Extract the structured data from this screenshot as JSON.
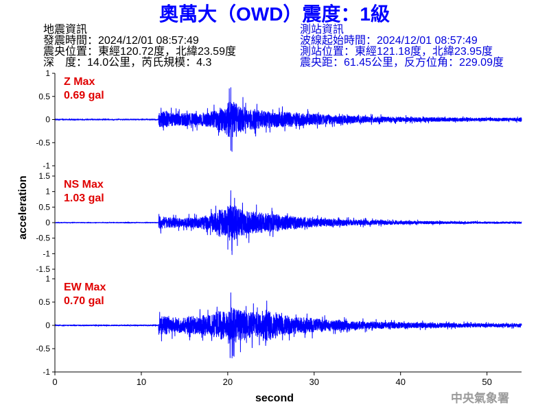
{
  "chart_data": {
    "type": "line",
    "title": "奧萬大（OWD）震度：1級",
    "xlabel": "second",
    "ylabel": "acceleration",
    "xlim": [
      0,
      54
    ],
    "xticks": [
      0,
      10,
      20,
      30,
      40,
      50
    ],
    "grid": false,
    "panels": [
      {
        "label": "Z Max",
        "max_label": "0.69 gal",
        "max_gal": 0.69,
        "ylim": [
          -1,
          1
        ],
        "yticks": [
          1,
          0.5,
          0,
          -0.5,
          -1
        ],
        "envelope": [
          [
            0,
            0.02
          ],
          [
            1,
            0.02
          ],
          [
            2,
            0.02
          ],
          [
            3,
            0.02
          ],
          [
            4,
            0.02
          ],
          [
            5,
            0.02
          ],
          [
            6,
            0.02
          ],
          [
            7,
            0.02
          ],
          [
            8,
            0.02
          ],
          [
            9,
            0.02
          ],
          [
            10,
            0.02
          ],
          [
            11,
            0.02
          ],
          [
            12,
            0.3
          ],
          [
            13,
            0.26
          ],
          [
            14,
            0.24
          ],
          [
            15,
            0.26
          ],
          [
            16,
            0.24
          ],
          [
            17,
            0.27
          ],
          [
            18,
            0.36
          ],
          [
            19,
            0.45
          ],
          [
            20,
            0.69
          ],
          [
            21,
            0.5
          ],
          [
            22,
            0.4
          ],
          [
            23,
            0.36
          ],
          [
            24,
            0.33
          ],
          [
            25,
            0.3
          ],
          [
            26,
            0.3
          ],
          [
            27,
            0.28
          ],
          [
            28,
            0.25
          ],
          [
            29,
            0.22
          ],
          [
            30,
            0.2
          ],
          [
            31,
            0.18
          ],
          [
            32,
            0.17
          ],
          [
            33,
            0.15
          ],
          [
            34,
            0.14
          ],
          [
            35,
            0.13
          ],
          [
            36,
            0.12
          ],
          [
            37,
            0.11
          ],
          [
            38,
            0.1
          ],
          [
            39,
            0.1
          ],
          [
            40,
            0.09
          ],
          [
            41,
            0.09
          ],
          [
            42,
            0.08
          ],
          [
            43,
            0.08
          ],
          [
            44,
            0.08
          ],
          [
            45,
            0.07
          ],
          [
            46,
            0.07
          ],
          [
            47,
            0.07
          ],
          [
            48,
            0.06
          ],
          [
            49,
            0.06
          ],
          [
            50,
            0.06
          ],
          [
            51,
            0.06
          ],
          [
            52,
            0.06
          ],
          [
            53,
            0.07
          ]
        ]
      },
      {
        "label": "NS Max",
        "max_label": "1.03 gal",
        "max_gal": 1.03,
        "ylim": [
          -1.5,
          1.5
        ],
        "yticks": [
          1.5,
          1,
          0.5,
          0,
          -0.5,
          -1,
          -1.5
        ],
        "envelope": [
          [
            0,
            0.02
          ],
          [
            1,
            0.02
          ],
          [
            2,
            0.02
          ],
          [
            3,
            0.02
          ],
          [
            4,
            0.02
          ],
          [
            5,
            0.02
          ],
          [
            6,
            0.02
          ],
          [
            7,
            0.02
          ],
          [
            8,
            0.03
          ],
          [
            9,
            0.02
          ],
          [
            10,
            0.02
          ],
          [
            11,
            0.02
          ],
          [
            12,
            0.35
          ],
          [
            13,
            0.3
          ],
          [
            14,
            0.28
          ],
          [
            15,
            0.3
          ],
          [
            16,
            0.3
          ],
          [
            17,
            0.4
          ],
          [
            18,
            0.55
          ],
          [
            19,
            0.75
          ],
          [
            20,
            1.03
          ],
          [
            21,
            0.8
          ],
          [
            22,
            0.65
          ],
          [
            23,
            0.6
          ],
          [
            24,
            0.55
          ],
          [
            25,
            0.5
          ],
          [
            26,
            0.42
          ],
          [
            27,
            0.36
          ],
          [
            28,
            0.32
          ],
          [
            29,
            0.28
          ],
          [
            30,
            0.25
          ],
          [
            31,
            0.22
          ],
          [
            32,
            0.2
          ],
          [
            33,
            0.18
          ],
          [
            34,
            0.16
          ],
          [
            35,
            0.15
          ],
          [
            36,
            0.13
          ],
          [
            37,
            0.12
          ],
          [
            38,
            0.11
          ],
          [
            39,
            0.1
          ],
          [
            40,
            0.09
          ],
          [
            41,
            0.09
          ],
          [
            42,
            0.08
          ],
          [
            43,
            0.08
          ],
          [
            44,
            0.07
          ],
          [
            45,
            0.07
          ],
          [
            46,
            0.06
          ],
          [
            47,
            0.06
          ],
          [
            48,
            0.06
          ],
          [
            49,
            0.05
          ],
          [
            50,
            0.05
          ],
          [
            51,
            0.05
          ],
          [
            52,
            0.05
          ],
          [
            53,
            0.05
          ]
        ]
      },
      {
        "label": "EW Max",
        "max_label": "0.70 gal",
        "max_gal": 0.7,
        "ylim": [
          -1,
          1
        ],
        "yticks": [
          1,
          0.5,
          0,
          -0.5,
          -1
        ],
        "envelope": [
          [
            0,
            0.02
          ],
          [
            1,
            0.02
          ],
          [
            2,
            0.02
          ],
          [
            3,
            0.02
          ],
          [
            4,
            0.02
          ],
          [
            5,
            0.02
          ],
          [
            6,
            0.02
          ],
          [
            7,
            0.02
          ],
          [
            8,
            0.02
          ],
          [
            9,
            0.02
          ],
          [
            10,
            0.02
          ],
          [
            11,
            0.02
          ],
          [
            12,
            0.36
          ],
          [
            13,
            0.33
          ],
          [
            14,
            0.3
          ],
          [
            15,
            0.32
          ],
          [
            16,
            0.35
          ],
          [
            17,
            0.4
          ],
          [
            18,
            0.45
          ],
          [
            19,
            0.55
          ],
          [
            20,
            0.7
          ],
          [
            21,
            0.6
          ],
          [
            22,
            0.5
          ],
          [
            23,
            0.45
          ],
          [
            24,
            0.6
          ],
          [
            25,
            0.5
          ],
          [
            26,
            0.4
          ],
          [
            27,
            0.35
          ],
          [
            28,
            0.3
          ],
          [
            29,
            0.28
          ],
          [
            30,
            0.25
          ],
          [
            31,
            0.22
          ],
          [
            32,
            0.2
          ],
          [
            33,
            0.18
          ],
          [
            34,
            0.16
          ],
          [
            35,
            0.15
          ],
          [
            36,
            0.14
          ],
          [
            37,
            0.13
          ],
          [
            38,
            0.12
          ],
          [
            39,
            0.12
          ],
          [
            40,
            0.11
          ],
          [
            41,
            0.1
          ],
          [
            42,
            0.1
          ],
          [
            43,
            0.09
          ],
          [
            44,
            0.09
          ],
          [
            45,
            0.08
          ],
          [
            46,
            0.08
          ],
          [
            47,
            0.08
          ],
          [
            48,
            0.07
          ],
          [
            49,
            0.07
          ],
          [
            50,
            0.07
          ],
          [
            51,
            0.07
          ],
          [
            52,
            0.07
          ],
          [
            53,
            0.07
          ]
        ]
      }
    ]
  },
  "event_info": {
    "heading": "地震資訊",
    "origin_time": "發震時間：2024/12/01 08:57:49",
    "epicenter": "震央位置：東經120.72度，北緯23.59度",
    "depth_magnitude": "深　度：14.0公里，芮氏規模：4.3"
  },
  "station_info": {
    "heading": "測站資訊",
    "trace_start": "波線起始時間：2024/12/01 08:57:49",
    "location": "測站位置：東經121.18度，北緯23.95度",
    "distance_azimuth": "震央距：61.45公里，反方位角：229.09度"
  },
  "watermark": "中央氣象署",
  "colors": {
    "title": "#0000ff",
    "event_info": "#000000",
    "station_info": "#0000dd",
    "trace": "#0000ff",
    "max_label": "#e00000",
    "watermark": "#9a9a9a"
  }
}
